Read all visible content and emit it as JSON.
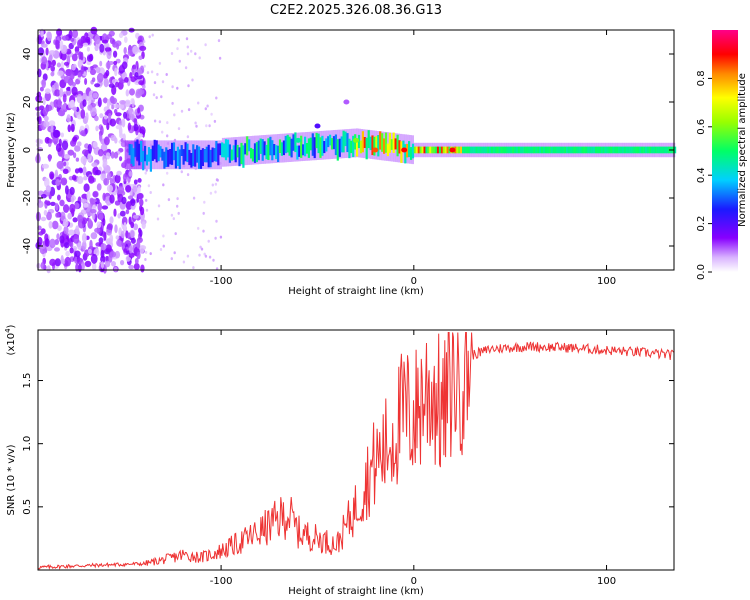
{
  "title": "C2E2.2025.326.08.36.G13",
  "colors": {
    "series_line": "#ee3333",
    "axis": "#000000",
    "background": "#ffffff"
  },
  "chart_data": [
    {
      "type": "heatmap",
      "name": "spectrogram",
      "xlabel": "Height of straight line (km)",
      "ylabel": "Frequency (Hz)",
      "xlim": [
        -195,
        135
      ],
      "ylim": [
        -50,
        50
      ],
      "x_ticks": [
        -100,
        0,
        100
      ],
      "y_ticks": [
        -40,
        -20,
        0,
        20,
        40
      ],
      "grid": false,
      "colorbar": {
        "label": "Normalized spectral amplitude",
        "range": [
          0,
          1
        ],
        "ticks": [
          "0.0",
          "0.2",
          "0.4",
          "0.6",
          "0.8"
        ],
        "colormap": "rainbow (white → violet → blue → cyan → green → yellow → red → magenta)"
      },
      "ridge": {
        "description": "Signal ridge centred near 0 Hz; broad scatter below -140 km, strong red peaks between -35 and 20 km, steady green band above 0 km",
        "centre_frequency_hz": 0,
        "features": [
          {
            "x_km": -60,
            "freq_hz": 4,
            "amp": 0.45
          },
          {
            "x_km": -50,
            "freq_hz": 10,
            "amp": 0.2
          },
          {
            "x_km": -35,
            "freq_hz": 20,
            "amp": 0.1
          },
          {
            "x_km": -30,
            "freq_hz": 4,
            "amp": 0.6
          },
          {
            "x_km": -20,
            "freq_hz": 0,
            "amp": 0.85
          },
          {
            "x_km": -5,
            "freq_hz": 0,
            "amp": 0.9
          },
          {
            "x_km": 20,
            "freq_hz": 0,
            "amp": 0.9
          }
        ]
      }
    },
    {
      "type": "line",
      "name": "snr",
      "xlabel": "Height of straight line (km)",
      "ylabel": "SNR (10 * v/v)",
      "y_scale_label": "(x10",
      "y_scale_exp": "4",
      "xlim": [
        -195,
        135
      ],
      "ylim": [
        0,
        1.9
      ],
      "x_ticks": [
        -100,
        0,
        100
      ],
      "y_ticks": [
        "0.5",
        "1.0",
        "1.5"
      ],
      "grid": false,
      "series": [
        {
          "name": "SNR",
          "unit": "x10^4",
          "x": [
            -195,
            -180,
            -160,
            -140,
            -130,
            -120,
            -110,
            -100,
            -90,
            -80,
            -70,
            -65,
            -60,
            -50,
            -40,
            -35,
            -30,
            -25,
            -20,
            -15,
            -10,
            -5,
            0,
            5,
            10,
            15,
            20,
            30,
            40,
            60,
            80,
            100,
            120,
            135
          ],
          "y": [
            0.02,
            0.03,
            0.04,
            0.05,
            0.08,
            0.12,
            0.1,
            0.15,
            0.22,
            0.3,
            0.4,
            0.45,
            0.3,
            0.25,
            0.2,
            0.35,
            0.5,
            0.7,
            0.85,
            0.95,
            1.1,
            1.25,
            1.2,
            1.4,
            1.45,
            1.2,
            1.55,
            1.7,
            1.75,
            1.77,
            1.76,
            1.74,
            1.72,
            1.7
          ]
        }
      ]
    }
  ]
}
